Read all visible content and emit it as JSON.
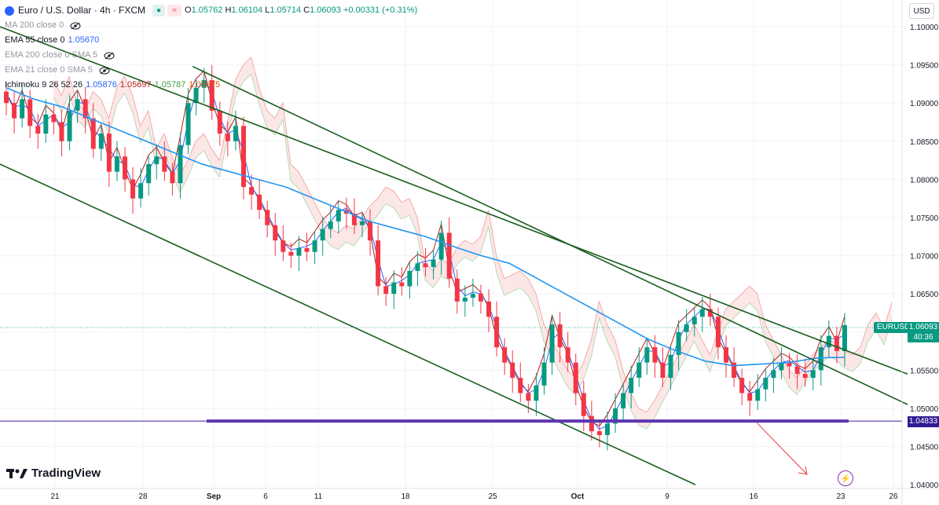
{
  "header": {
    "symbol_title": "Euro / U.S. Dollar · 4h · FXCM",
    "ohlc": {
      "o_label": "O",
      "o": "1.05762",
      "h_label": "H",
      "h": "1.06104",
      "l_label": "L",
      "l": "1.05714",
      "c_label": "C",
      "c": "1.06093",
      "change": "+0.00331 (+0.31%)"
    },
    "currency": "USD"
  },
  "indicators": [
    {
      "label": "MA 200 close 0",
      "value": "",
      "hidden": true
    },
    {
      "label": "EMA 55 close 0",
      "value": "1.05670",
      "hidden": false
    },
    {
      "label": "EMA 200 close 0 SMA 5",
      "value": "",
      "hidden": true
    },
    {
      "label": "EMA 21 close 0 SMA 5",
      "value": "",
      "hidden": true
    },
    {
      "label": "Ichimoku 9 26 52 26",
      "values": [
        "1.05876",
        "1.05697",
        "1.05787",
        "1.05675"
      ]
    }
  ],
  "price_axis": {
    "ticks": [
      "1.10000",
      "1.09500",
      "1.09000",
      "1.08500",
      "1.08000",
      "1.07500",
      "1.07000",
      "1.06500",
      "1.06000",
      "1.05500",
      "1.05000",
      "1.04500",
      "1.04000"
    ],
    "current_price": "1.06093",
    "countdown": "40:36",
    "support_price": "1.04833",
    "symbol_tag": "EURUSD"
  },
  "time_axis": {
    "ticks": [
      "21",
      "28",
      "Sep",
      "6",
      "11",
      "18",
      "25",
      "Oct",
      "9",
      "16",
      "23",
      "26"
    ]
  },
  "branding": {
    "logo_text": "TradingView"
  },
  "colors": {
    "up": "#089981",
    "down": "#f23645",
    "ema55": "#2196f3",
    "tenkan": "#2962ff",
    "kijun": "#b71c1c",
    "cloud_bear": "#fce4e4",
    "cloud_bull": "#e6f4e6",
    "channel": "#1b5e20",
    "support": "#5e35b1",
    "arrow": "#f23645"
  },
  "chart_data": {
    "type": "candlestick",
    "interval": "4h",
    "ylim": [
      1.0395,
      1.1035
    ],
    "support_level": 1.04833,
    "last_close": 1.06093,
    "channel_lines": [
      {
        "name": "",
        "p1": [
          "Aug 17",
          1.1
        ],
        "p2": [
          "Oct 26",
          1.0545
        ]
      },
      {
        "name": "",
        "p1": [
          "Aug 31",
          1.0948
        ],
        "p2": [
          "Oct 26",
          1.0505
        ]
      },
      {
        "name": "",
        "p1": [
          "Aug 17",
          1.082
        ],
        "p2": [
          "Oct 11",
          1.04
        ]
      }
    ],
    "series": [
      {
        "name": "close",
        "values": [
          1.09,
          1.088,
          1.0905,
          1.087,
          1.086,
          1.0885,
          1.0875,
          1.085,
          1.089,
          1.0905,
          1.088,
          1.084,
          1.086,
          1.081,
          1.083,
          1.08,
          1.0775,
          1.0795,
          1.082,
          1.083,
          1.081,
          1.0795,
          1.0845,
          1.09,
          1.092,
          1.093,
          1.089,
          1.086,
          1.085,
          1.087,
          1.079,
          1.078,
          1.076,
          1.074,
          1.072,
          1.0705,
          1.07,
          1.071,
          1.0705,
          1.072,
          1.0735,
          1.0745,
          1.076,
          1.0755,
          1.074,
          1.0745,
          1.072,
          1.066,
          1.065,
          1.0665,
          1.066,
          1.068,
          1.069,
          1.0685,
          1.0695,
          1.073,
          1.067,
          1.064,
          1.0645,
          1.065,
          1.064,
          1.062,
          1.058,
          1.056,
          1.054,
          1.052,
          1.051,
          1.053,
          1.056,
          1.061,
          1.058,
          1.056,
          1.052,
          1.049,
          1.047,
          1.0465,
          1.048,
          1.05,
          1.052,
          1.054,
          1.056,
          1.058,
          1.056,
          1.054,
          1.057,
          1.06,
          1.061,
          1.062,
          1.063,
          1.062,
          1.058,
          1.056,
          1.054,
          1.052,
          1.051,
          1.0525,
          1.054,
          1.055,
          1.056,
          1.0555,
          1.0545,
          1.054,
          1.055,
          1.058,
          1.0595,
          1.0575,
          1.0609
        ]
      }
    ],
    "ema55": [
      1.092,
      1.0905,
      1.0895,
      1.088,
      1.0865,
      1.085,
      1.0835,
      1.082,
      1.081,
      1.08,
      1.079,
      1.0775,
      1.076,
      1.0745,
      1.0735,
      1.0725,
      1.0712,
      1.07,
      1.069,
      1.067,
      1.065,
      1.063,
      1.061,
      1.059,
      1.0575,
      1.0562,
      1.0556,
      1.0558,
      1.056,
      1.0566,
      1.0567
    ]
  }
}
